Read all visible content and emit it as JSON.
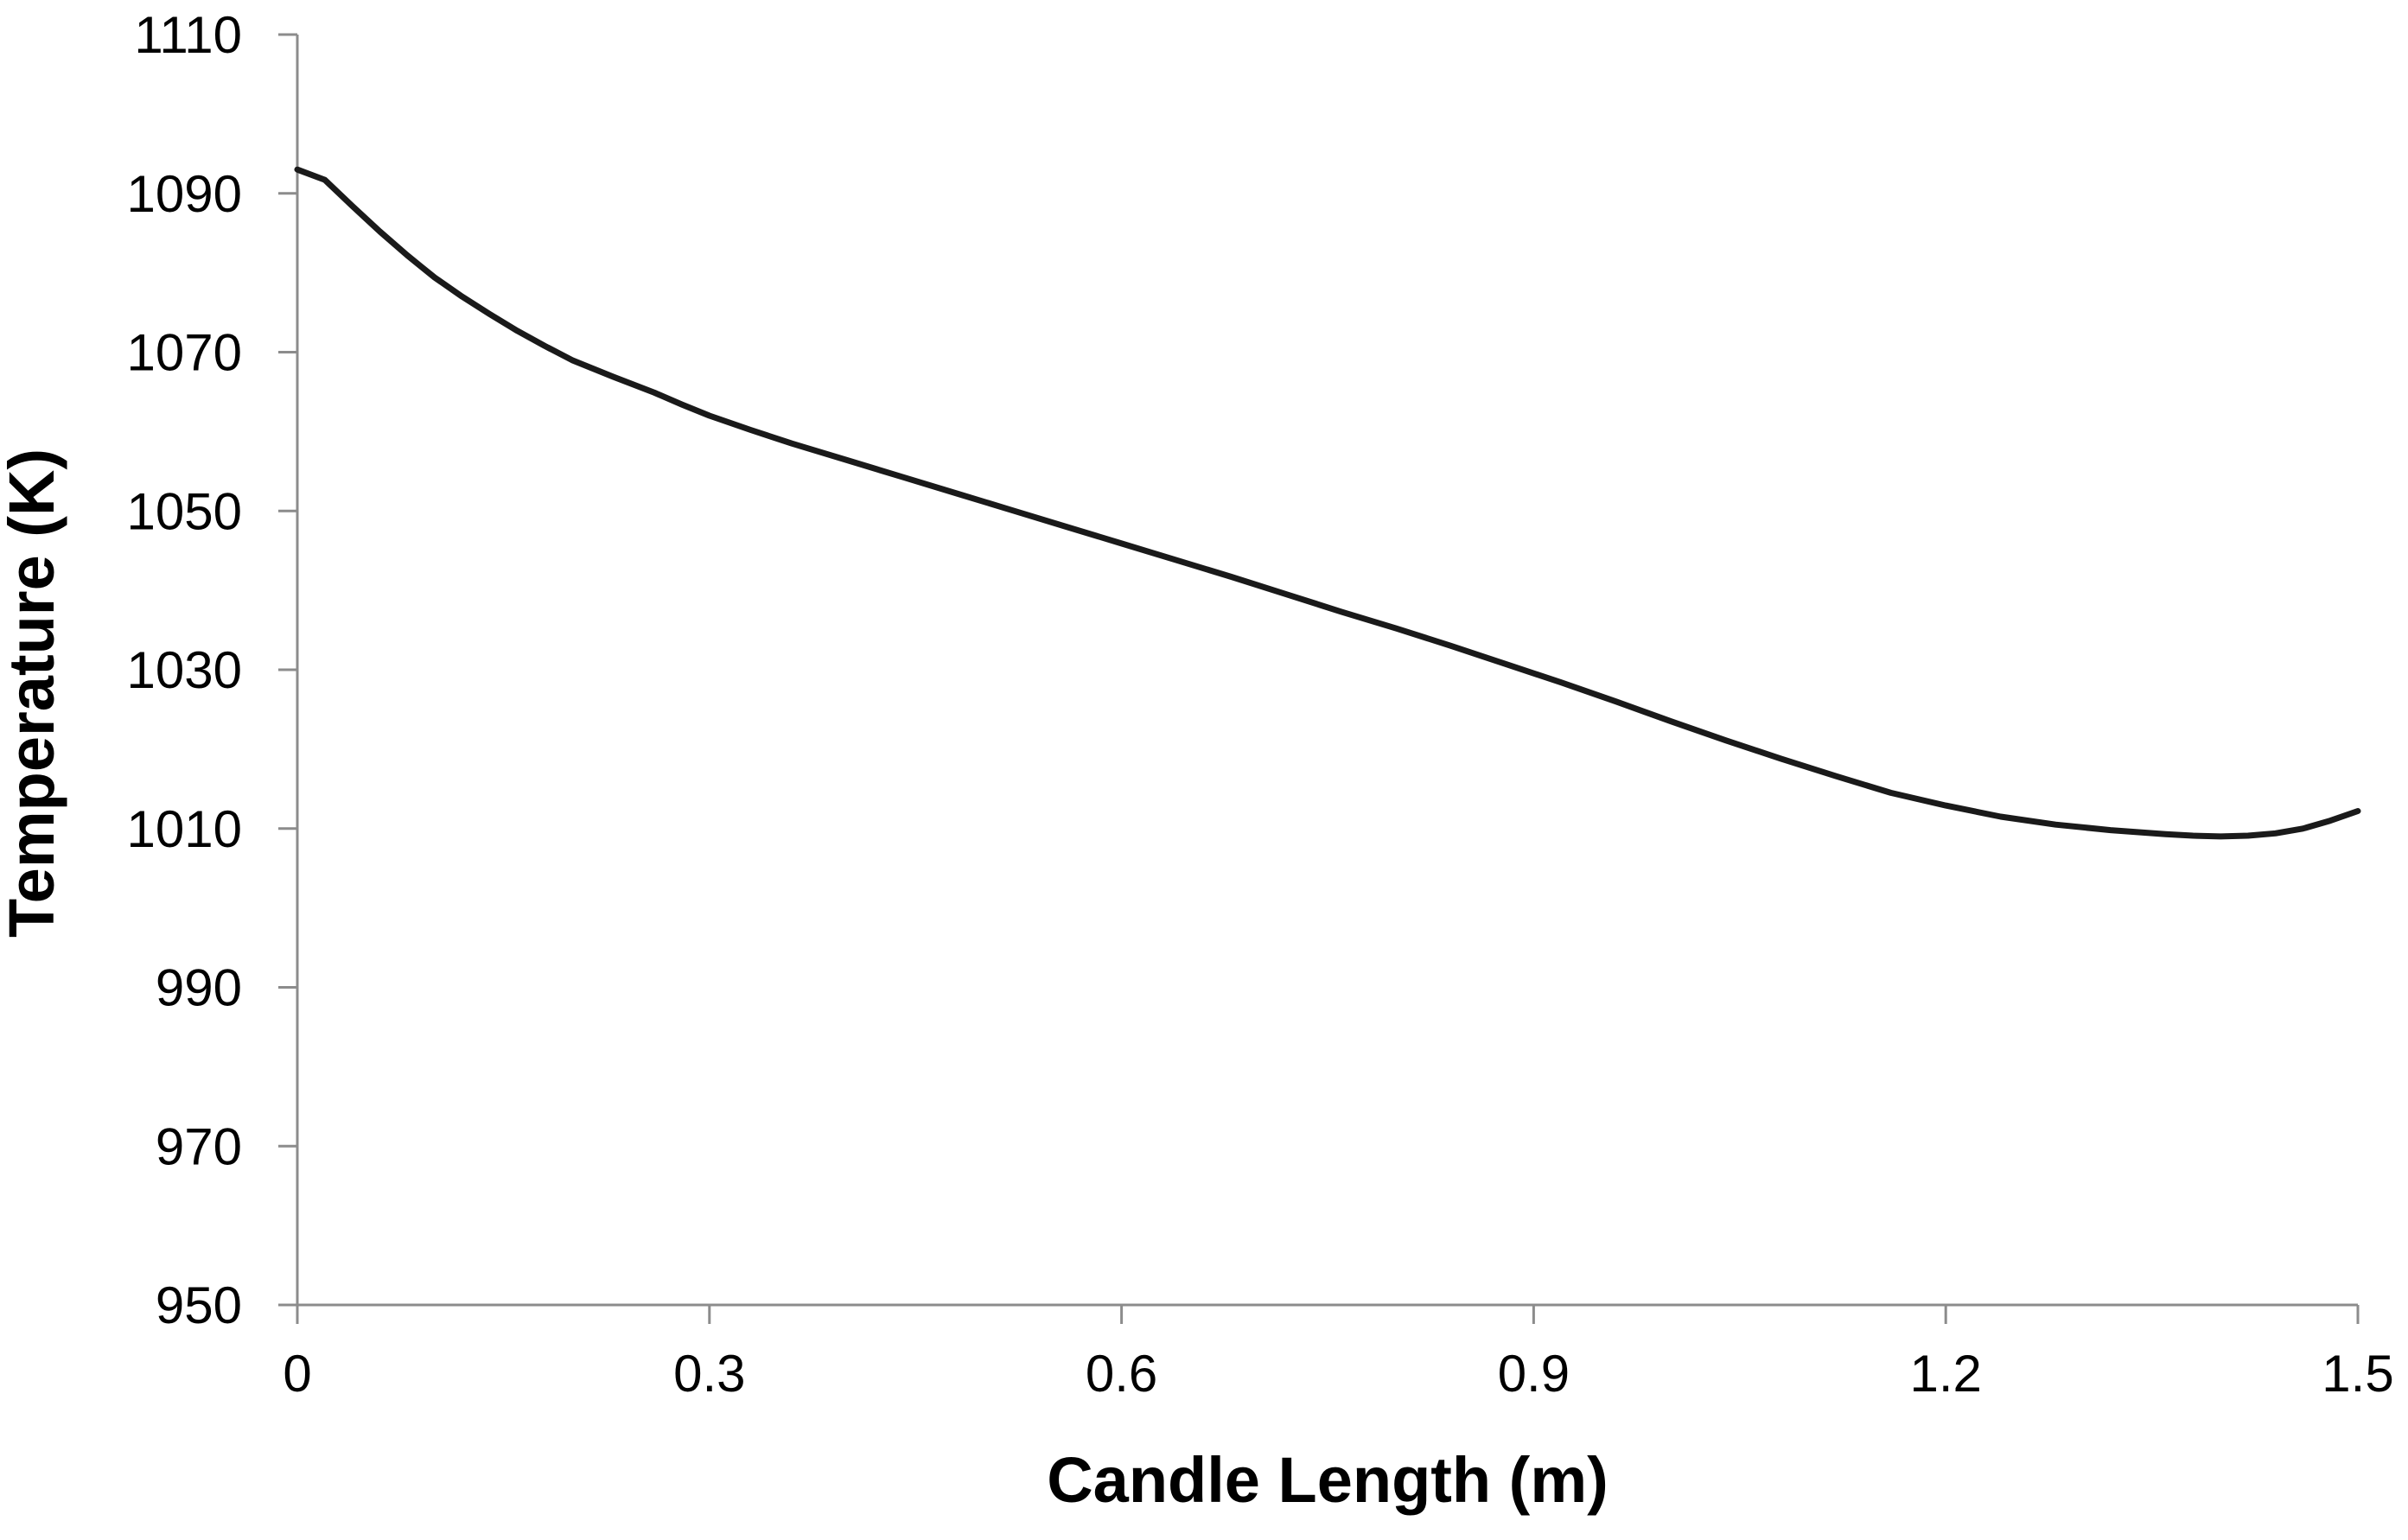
{
  "chart_data": {
    "type": "line",
    "title": "",
    "xlabel": "Candle Length (m)",
    "ylabel": "Temperature (K)",
    "xlim": [
      0,
      1.5
    ],
    "ylim": [
      950,
      1110
    ],
    "x_ticks": [
      "0",
      "0.3",
      "0.6",
      "0.9",
      "1.2",
      "1.5"
    ],
    "y_ticks": [
      "950",
      "970",
      "990",
      "1010",
      "1030",
      "1050",
      "1070",
      "1090",
      "1110"
    ],
    "grid": false,
    "legend": "none",
    "line_color": "#1a1a1a",
    "series": [
      {
        "x": [
          0,
          0.02,
          0.04,
          0.06,
          0.08,
          0.09,
          0.1,
          0.12,
          0.14,
          0.16,
          0.18,
          0.2,
          0.23,
          0.26,
          0.28,
          0.3,
          0.33,
          0.36,
          0.4,
          0.44,
          0.48,
          0.52,
          0.56,
          0.6,
          0.64,
          0.68,
          0.72,
          0.76,
          0.8,
          0.84,
          0.88,
          0.92,
          0.96,
          1.0,
          1.04,
          1.08,
          1.12,
          1.16,
          1.2,
          1.24,
          1.28,
          1.32,
          1.36,
          1.38,
          1.4,
          1.42,
          1.44,
          1.46,
          1.48,
          1.5
        ],
        "values": [
          1093,
          1091.7,
          1088.4,
          1085.2,
          1082.2,
          1080.8,
          1079.4,
          1077.0,
          1074.8,
          1072.7,
          1070.8,
          1069.0,
          1066.9,
          1064.9,
          1063.4,
          1062.0,
          1060.2,
          1058.5,
          1056.4,
          1054.3,
          1052.2,
          1050.1,
          1048.0,
          1045.9,
          1043.8,
          1041.7,
          1039.5,
          1037.3,
          1035.2,
          1033.0,
          1030.7,
          1028.4,
          1026.0,
          1023.5,
          1021.1,
          1018.8,
          1016.6,
          1014.5,
          1012.9,
          1011.5,
          1010.5,
          1009.8,
          1009.3,
          1009.1,
          1009.0,
          1009.1,
          1009.4,
          1010.0,
          1011.0,
          1012.2
        ]
      }
    ]
  }
}
